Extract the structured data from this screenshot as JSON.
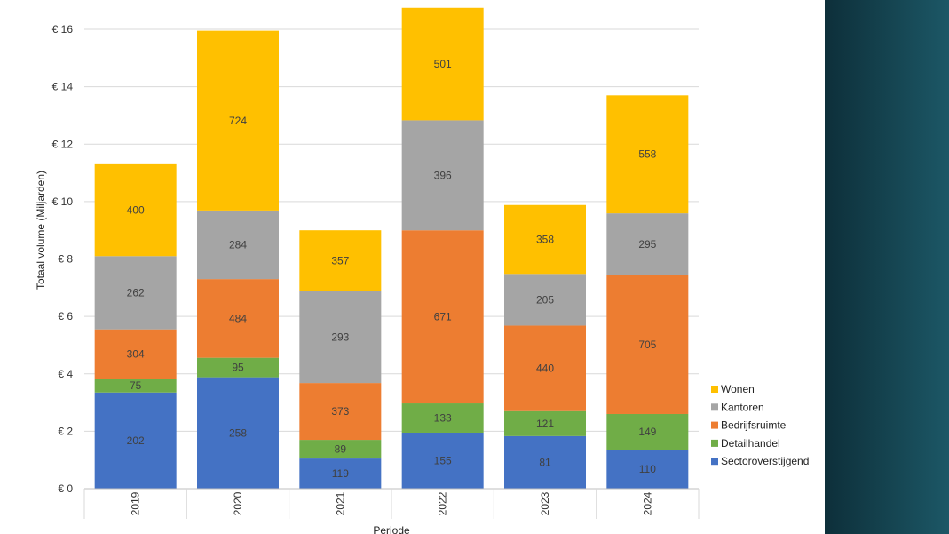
{
  "chart_data": {
    "type": "bar",
    "stacked": true,
    "title": "",
    "xlabel": "Periode",
    "ylabel": "Totaal volume (Miljarden)",
    "categories": [
      "2019",
      "2020",
      "2021",
      "2022",
      "2023",
      "2024"
    ],
    "ylim": [
      0,
      16
    ],
    "yticks": [
      0,
      2,
      4,
      6,
      8,
      10,
      12,
      14,
      16
    ],
    "ytick_labels": [
      "€ 0",
      "€ 2",
      "€ 4",
      "€ 6",
      "€ 8",
      "€ 10",
      "€ 12",
      "€ 14",
      "€ 16"
    ],
    "grid": true,
    "legend_position": "right",
    "series": [
      {
        "name": "Sectoroverstijgend",
        "color": "#4472C4",
        "values": [
          3.35,
          3.88,
          1.05,
          1.95,
          1.83,
          1.35
        ],
        "labels": [
          "202",
          "258",
          "119",
          "155",
          "81",
          "110"
        ]
      },
      {
        "name": "Detailhandel",
        "color": "#70AD47",
        "values": [
          0.47,
          0.68,
          0.65,
          1.02,
          0.87,
          1.25
        ],
        "labels": [
          "75",
          "95",
          "89",
          "133",
          "121",
          "149"
        ]
      },
      {
        "name": "Bedrijfsruimte",
        "color": "#ED7D31",
        "values": [
          1.73,
          2.74,
          1.98,
          6.03,
          2.98,
          4.84
        ],
        "labels": [
          "304",
          "484",
          "373",
          "671",
          "440",
          "705"
        ]
      },
      {
        "name": "Kantoren",
        "color": "#A5A5A5",
        "values": [
          2.55,
          2.39,
          3.2,
          3.83,
          1.8,
          2.15
        ],
        "labels": [
          "262",
          "284",
          "293",
          "396",
          "205",
          "295"
        ]
      },
      {
        "name": "Wonen",
        "color": "#FFC000",
        "values": [
          3.2,
          6.26,
          2.12,
          3.92,
          2.4,
          4.11
        ],
        "labels": [
          "400",
          "724",
          "357",
          "501",
          "358",
          "558"
        ]
      }
    ]
  }
}
